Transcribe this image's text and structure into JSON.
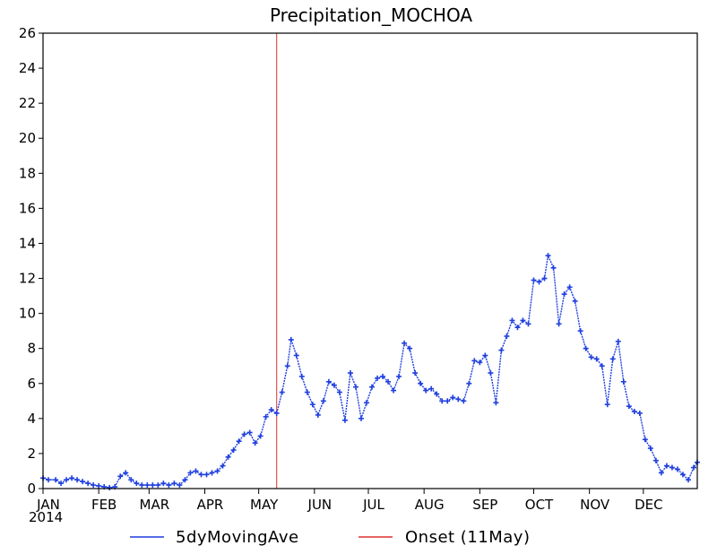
{
  "chart_data": {
    "type": "line",
    "title": "Precipitation_MOCHOA",
    "year_label": "2014",
    "xlabel": "",
    "ylabel": "",
    "ylim": [
      0,
      26
    ],
    "yticks": [
      0,
      2,
      4,
      6,
      8,
      10,
      12,
      14,
      16,
      18,
      20,
      22,
      24,
      26
    ],
    "xlim": [
      "2014-01-01",
      "2014-12-31"
    ],
    "month_ticks": [
      {
        "label": "JAN",
        "date": "2014-01-01"
      },
      {
        "label": "FEB",
        "date": "2014-02-01"
      },
      {
        "label": "MAR",
        "date": "2014-03-01"
      },
      {
        "label": "APR",
        "date": "2014-04-01"
      },
      {
        "label": "MAY",
        "date": "2014-05-01"
      },
      {
        "label": "JUN",
        "date": "2014-06-01"
      },
      {
        "label": "JUL",
        "date": "2014-07-01"
      },
      {
        "label": "AUG",
        "date": "2014-08-01"
      },
      {
        "label": "SEP",
        "date": "2014-09-01"
      },
      {
        "label": "OCT",
        "date": "2014-10-01"
      },
      {
        "label": "NOV",
        "date": "2014-11-01"
      },
      {
        "label": "DEC",
        "date": "2014-12-01"
      }
    ],
    "grid": false,
    "legend_position": "bottom",
    "series": [
      {
        "name": "5dyMovingAve",
        "color": "#1f3fe0",
        "marker": "plus",
        "points": [
          [
            "2014-01-01",
            0.6
          ],
          [
            "2014-01-04",
            0.5
          ],
          [
            "2014-01-08",
            0.5
          ],
          [
            "2014-01-11",
            0.3
          ],
          [
            "2014-01-14",
            0.5
          ],
          [
            "2014-01-17",
            0.6
          ],
          [
            "2014-01-20",
            0.5
          ],
          [
            "2014-01-23",
            0.4
          ],
          [
            "2014-01-26",
            0.3
          ],
          [
            "2014-01-29",
            0.2
          ],
          [
            "2014-02-01",
            0.15
          ],
          [
            "2014-02-04",
            0.1
          ],
          [
            "2014-02-07",
            0.05
          ],
          [
            "2014-02-10",
            0.1
          ],
          [
            "2014-02-13",
            0.7
          ],
          [
            "2014-02-16",
            0.9
          ],
          [
            "2014-02-19",
            0.5
          ],
          [
            "2014-02-22",
            0.3
          ],
          [
            "2014-02-25",
            0.2
          ],
          [
            "2014-02-28",
            0.2
          ],
          [
            "2014-03-03",
            0.2
          ],
          [
            "2014-03-06",
            0.2
          ],
          [
            "2014-03-09",
            0.3
          ],
          [
            "2014-03-12",
            0.2
          ],
          [
            "2014-03-15",
            0.3
          ],
          [
            "2014-03-18",
            0.2
          ],
          [
            "2014-03-21",
            0.5
          ],
          [
            "2014-03-24",
            0.9
          ],
          [
            "2014-03-27",
            1.0
          ],
          [
            "2014-03-30",
            0.8
          ],
          [
            "2014-04-02",
            0.8
          ],
          [
            "2014-04-05",
            0.9
          ],
          [
            "2014-04-08",
            1.0
          ],
          [
            "2014-04-11",
            1.3
          ],
          [
            "2014-04-14",
            1.8
          ],
          [
            "2014-04-17",
            2.2
          ],
          [
            "2014-04-20",
            2.7
          ],
          [
            "2014-04-23",
            3.1
          ],
          [
            "2014-04-26",
            3.2
          ],
          [
            "2014-04-29",
            2.6
          ],
          [
            "2014-05-02",
            3.0
          ],
          [
            "2014-05-05",
            4.1
          ],
          [
            "2014-05-08",
            4.5
          ],
          [
            "2014-05-11",
            4.3
          ],
          [
            "2014-05-14",
            5.5
          ],
          [
            "2014-05-17",
            7.0
          ],
          [
            "2014-05-19",
            8.5
          ],
          [
            "2014-05-22",
            7.6
          ],
          [
            "2014-05-25",
            6.4
          ],
          [
            "2014-05-28",
            5.5
          ],
          [
            "2014-05-31",
            4.8
          ],
          [
            "2014-06-03",
            4.2
          ],
          [
            "2014-06-06",
            5.0
          ],
          [
            "2014-06-09",
            6.1
          ],
          [
            "2014-06-12",
            5.9
          ],
          [
            "2014-06-15",
            5.5
          ],
          [
            "2014-06-18",
            3.9
          ],
          [
            "2014-06-21",
            6.6
          ],
          [
            "2014-06-24",
            5.8
          ],
          [
            "2014-06-27",
            4.0
          ],
          [
            "2014-06-30",
            4.9
          ],
          [
            "2014-07-03",
            5.8
          ],
          [
            "2014-07-06",
            6.3
          ],
          [
            "2014-07-09",
            6.4
          ],
          [
            "2014-07-12",
            6.1
          ],
          [
            "2014-07-15",
            5.6
          ],
          [
            "2014-07-18",
            6.4
          ],
          [
            "2014-07-21",
            8.3
          ],
          [
            "2014-07-24",
            8.0
          ],
          [
            "2014-07-27",
            6.6
          ],
          [
            "2014-07-30",
            6.0
          ],
          [
            "2014-08-02",
            5.6
          ],
          [
            "2014-08-05",
            5.7
          ],
          [
            "2014-08-08",
            5.4
          ],
          [
            "2014-08-11",
            5.0
          ],
          [
            "2014-08-14",
            5.0
          ],
          [
            "2014-08-17",
            5.2
          ],
          [
            "2014-08-20",
            5.1
          ],
          [
            "2014-08-23",
            5.0
          ],
          [
            "2014-08-26",
            6.0
          ],
          [
            "2014-08-29",
            7.3
          ],
          [
            "2014-09-01",
            7.2
          ],
          [
            "2014-09-04",
            7.6
          ],
          [
            "2014-09-07",
            6.6
          ],
          [
            "2014-09-10",
            4.9
          ],
          [
            "2014-09-13",
            7.9
          ],
          [
            "2014-09-16",
            8.7
          ],
          [
            "2014-09-19",
            9.6
          ],
          [
            "2014-09-22",
            9.2
          ],
          [
            "2014-09-25",
            9.6
          ],
          [
            "2014-09-28",
            9.4
          ],
          [
            "2014-10-01",
            11.9
          ],
          [
            "2014-10-04",
            11.8
          ],
          [
            "2014-10-07",
            12.0
          ],
          [
            "2014-10-09",
            13.3
          ],
          [
            "2014-10-12",
            12.6
          ],
          [
            "2014-10-15",
            9.4
          ],
          [
            "2014-10-18",
            11.1
          ],
          [
            "2014-10-21",
            11.5
          ],
          [
            "2014-10-24",
            10.7
          ],
          [
            "2014-10-27",
            9.0
          ],
          [
            "2014-10-30",
            8.0
          ],
          [
            "2014-11-02",
            7.5
          ],
          [
            "2014-11-05",
            7.4
          ],
          [
            "2014-11-08",
            7.0
          ],
          [
            "2014-11-11",
            4.8
          ],
          [
            "2014-11-14",
            7.4
          ],
          [
            "2014-11-17",
            8.4
          ],
          [
            "2014-11-20",
            6.1
          ],
          [
            "2014-11-23",
            4.7
          ],
          [
            "2014-11-26",
            4.4
          ],
          [
            "2014-11-29",
            4.3
          ],
          [
            "2014-12-02",
            2.8
          ],
          [
            "2014-12-05",
            2.3
          ],
          [
            "2014-12-08",
            1.6
          ],
          [
            "2014-12-11",
            0.9
          ],
          [
            "2014-12-14",
            1.3
          ],
          [
            "2014-12-17",
            1.2
          ],
          [
            "2014-12-20",
            1.1
          ],
          [
            "2014-12-23",
            0.8
          ],
          [
            "2014-12-26",
            0.5
          ],
          [
            "2014-12-29",
            1.2
          ],
          [
            "2014-12-31",
            1.5
          ]
        ]
      },
      {
        "name": "Onset (11May)",
        "color": "#e03030",
        "type": "vertical-line",
        "x": "2014-05-11"
      }
    ]
  }
}
